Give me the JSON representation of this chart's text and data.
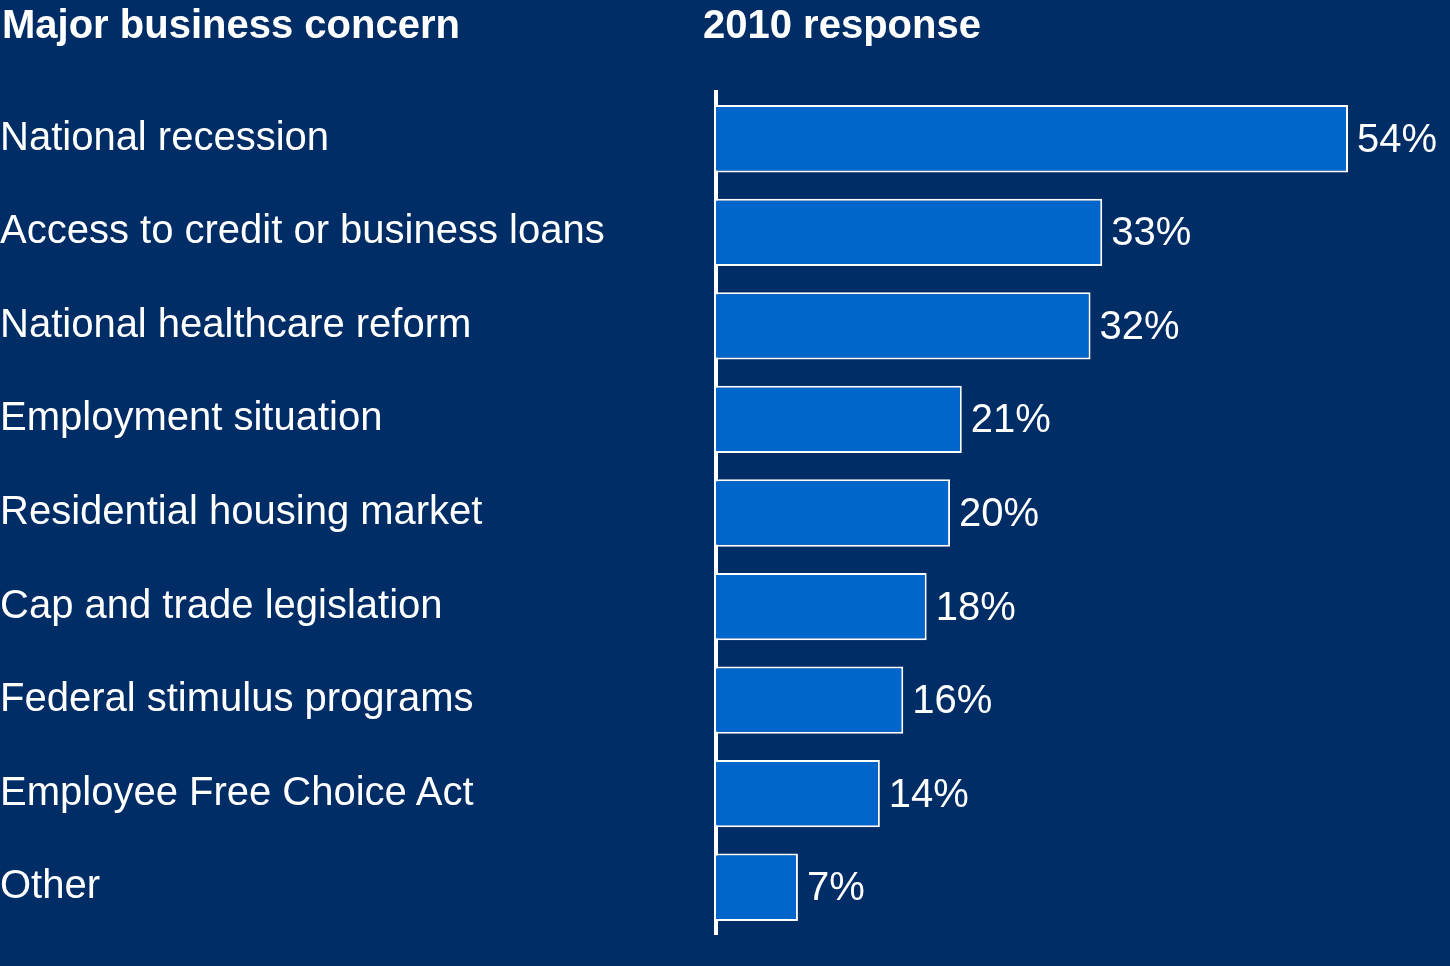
{
  "chart_data": {
    "type": "bar",
    "orientation": "horizontal",
    "title": "2010 response",
    "ylabel": "Major business concern",
    "categories": [
      "National recession",
      "Access to credit or business loans",
      "National healthcare reform",
      "Employment situation",
      "Residential housing market",
      "Cap and trade legislation",
      "Federal stimulus programs",
      "Employee Free Choice Act",
      "Other"
    ],
    "values": [
      54,
      33,
      32,
      21,
      20,
      18,
      16,
      14,
      7
    ],
    "value_labels": [
      "54%",
      "33%",
      "32%",
      "21%",
      "20%",
      "18%",
      "16%",
      "14%",
      "7%"
    ],
    "color": "#0066cc"
  }
}
